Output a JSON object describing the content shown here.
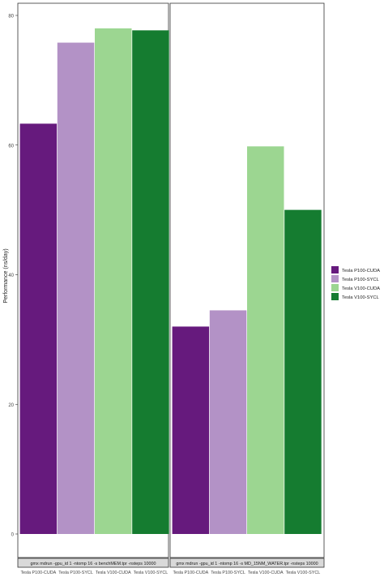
{
  "chart_data": {
    "type": "bar",
    "ylabel": "Performance (ns/day)",
    "ylim": [
      0,
      80
    ],
    "y_ticks": [
      0,
      20,
      40,
      60,
      80
    ],
    "legend_position": "right",
    "series": [
      {
        "name": "Tesla P100-CUDA",
        "color": "#661a7d"
      },
      {
        "name": "Tesla P100-SYCL",
        "color": "#b392c6"
      },
      {
        "name": "Tesla V100-CUDA",
        "color": "#9cd691"
      },
      {
        "name": "Tesla V100-SYCL",
        "color": "#157c30"
      }
    ],
    "facets": [
      {
        "label": "gmx mdrun -gpu_id 1 -ntomp 16 -s benchMEM.tpr -nsteps 10000",
        "categories": [
          "Tesla P100-CUDA",
          "Tesla P100-SYCL",
          "Tesla V100-CUDA",
          "Tesla V100-SYCL"
        ],
        "values": [
          63.3,
          75.8,
          78.0,
          77.7
        ]
      },
      {
        "label": "gmx mdrun -gpu_id 1 -ntomp 16 -s MD_15NM_WATER.tpr -nsteps 10000",
        "categories": [
          "Tesla P100-CUDA",
          "Tesla P100-SYCL",
          "Tesla V100-CUDA",
          "Tesla V100-SYCL"
        ],
        "values": [
          32.0,
          34.5,
          59.8,
          50.0
        ]
      }
    ]
  }
}
